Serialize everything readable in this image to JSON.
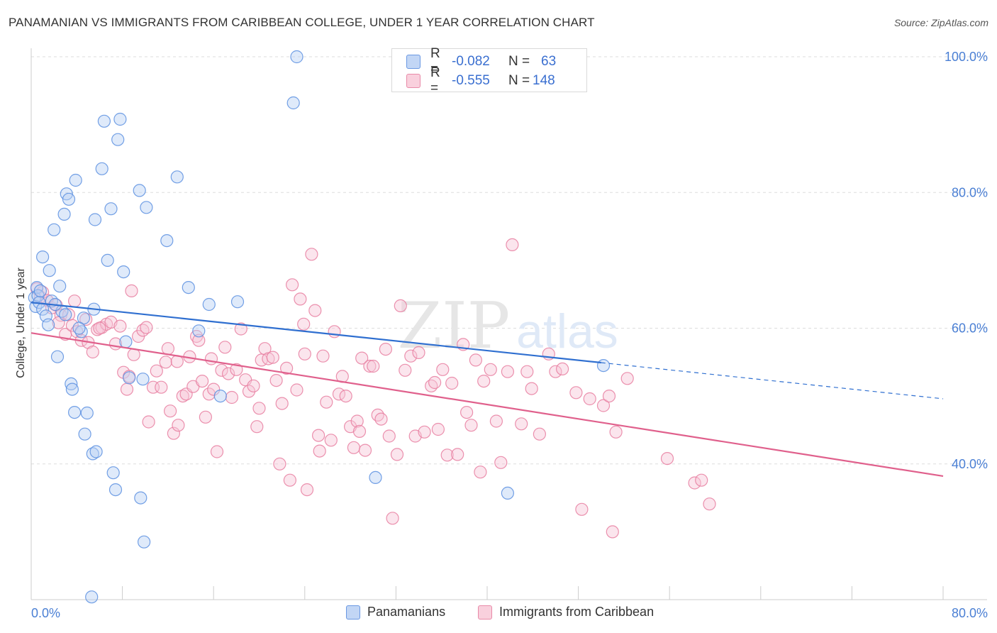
{
  "title": "PANAMANIAN VS IMMIGRANTS FROM CARIBBEAN COLLEGE, UNDER 1 YEAR CORRELATION CHART",
  "source": "Source: ZipAtlas.com",
  "watermark": {
    "zip": "ZIP",
    "atlas": "atlas"
  },
  "colors": {
    "blue": "#5b8fe0",
    "blue_fill": "#b9d0f5",
    "blue_line": "#2f6fd0",
    "pink": "#e87ea0",
    "pink_fill": "#f7c6d6",
    "pink_line": "#e0608c",
    "tick_text": "#4a7fd4",
    "grid": "#dddddd"
  },
  "legend": {
    "rows": [
      {
        "r_label": "R =",
        "r_value": "-0.082",
        "n_label": "N =",
        "n_value": "63"
      },
      {
        "r_label": "R =",
        "r_value": "-0.555",
        "n_label": "N =",
        "n_value": "148"
      }
    ]
  },
  "bottom_legend": [
    "Panamanians",
    "Immigrants from Caribbean"
  ],
  "chart_data": {
    "type": "scatter",
    "ylabel": "College, Under 1 year",
    "xlim": [
      0,
      80
    ],
    "ylim": [
      20,
      100
    ],
    "x_tick_labels": [
      "0.0%",
      "80.0%"
    ],
    "y_ticks": [
      40,
      60,
      80,
      100
    ],
    "y_tick_labels": [
      "40.0%",
      "60.0%",
      "80.0%",
      "100.0%"
    ],
    "grid": true,
    "series": [
      {
        "name": "Panamanians",
        "color": "#5b8fe0",
        "points": [
          [
            0.3,
            64.5
          ],
          [
            0.4,
            63.2
          ],
          [
            0.5,
            66.0
          ],
          [
            0.6,
            64.8
          ],
          [
            0.7,
            63.8
          ],
          [
            0.8,
            65.5
          ],
          [
            1.0,
            62.8
          ],
          [
            1.0,
            70.5
          ],
          [
            1.3,
            61.8
          ],
          [
            1.5,
            60.5
          ],
          [
            1.6,
            68.5
          ],
          [
            2.0,
            74.5
          ],
          [
            2.3,
            55.8
          ],
          [
            2.5,
            66.2
          ],
          [
            2.7,
            62.5
          ],
          [
            2.9,
            76.8
          ],
          [
            3.1,
            79.8
          ],
          [
            3.3,
            79.0
          ],
          [
            3.5,
            51.8
          ],
          [
            3.6,
            51.0
          ],
          [
            3.8,
            47.6
          ],
          [
            3.9,
            81.8
          ],
          [
            4.4,
            59.5
          ],
          [
            4.6,
            61.5
          ],
          [
            4.7,
            44.4
          ],
          [
            4.9,
            47.5
          ],
          [
            5.4,
            41.5
          ],
          [
            5.5,
            62.8
          ],
          [
            5.6,
            76.0
          ],
          [
            5.7,
            41.8
          ],
          [
            6.2,
            83.5
          ],
          [
            6.4,
            90.5
          ],
          [
            6.7,
            70.0
          ],
          [
            7.0,
            77.6
          ],
          [
            7.2,
            38.7
          ],
          [
            7.4,
            36.2
          ],
          [
            7.6,
            87.8
          ],
          [
            7.8,
            90.8
          ],
          [
            8.1,
            68.3
          ],
          [
            8.3,
            58.0
          ],
          [
            8.6,
            52.7
          ],
          [
            9.5,
            80.3
          ],
          [
            9.6,
            35.0
          ],
          [
            9.8,
            52.5
          ],
          [
            9.9,
            28.5
          ],
          [
            10.1,
            77.8
          ],
          [
            11.9,
            72.9
          ],
          [
            12.8,
            82.3
          ],
          [
            13.8,
            66.0
          ],
          [
            14.7,
            59.6
          ],
          [
            15.6,
            63.5
          ],
          [
            16.6,
            50.0
          ],
          [
            18.1,
            63.9
          ],
          [
            23.0,
            93.2
          ],
          [
            23.3,
            100.0
          ],
          [
            30.2,
            38.0
          ],
          [
            41.8,
            35.7
          ],
          [
            50.2,
            54.5
          ],
          [
            5.3,
            20.4
          ],
          [
            1.8,
            64.0
          ],
          [
            2.1,
            63.5
          ],
          [
            3.0,
            62.0
          ],
          [
            4.2,
            60.0
          ]
        ]
      },
      {
        "name": "Immigrants from Caribbean",
        "color": "#e87ea0",
        "points": [
          [
            0.5,
            65.8
          ],
          [
            0.8,
            64.6
          ],
          [
            1.0,
            65.3
          ],
          [
            1.4,
            64.1
          ],
          [
            1.8,
            63.0
          ],
          [
            2.2,
            63.4
          ],
          [
            2.6,
            61.9
          ],
          [
            3.0,
            59.1
          ],
          [
            3.3,
            62.0
          ],
          [
            3.6,
            60.4
          ],
          [
            4.0,
            59.5
          ],
          [
            4.4,
            58.2
          ],
          [
            4.8,
            61.3
          ],
          [
            5.0,
            57.9
          ],
          [
            5.4,
            56.5
          ],
          [
            5.8,
            59.8
          ],
          [
            6.2,
            60.1
          ],
          [
            6.6,
            60.6
          ],
          [
            7.0,
            60.9
          ],
          [
            7.4,
            57.7
          ],
          [
            7.8,
            60.3
          ],
          [
            8.1,
            53.5
          ],
          [
            8.4,
            51.0
          ],
          [
            8.8,
            65.5
          ],
          [
            9.0,
            56.1
          ],
          [
            9.4,
            58.8
          ],
          [
            9.8,
            59.7
          ],
          [
            10.1,
            60.1
          ],
          [
            10.3,
            46.2
          ],
          [
            10.7,
            51.3
          ],
          [
            11.0,
            53.7
          ],
          [
            11.4,
            51.3
          ],
          [
            11.8,
            55.0
          ],
          [
            12.0,
            57.0
          ],
          [
            12.2,
            47.8
          ],
          [
            12.5,
            44.5
          ],
          [
            12.9,
            45.7
          ],
          [
            13.3,
            50.0
          ],
          [
            13.6,
            50.3
          ],
          [
            13.9,
            55.8
          ],
          [
            14.2,
            51.4
          ],
          [
            14.5,
            58.8
          ],
          [
            14.7,
            58.2
          ],
          [
            15.0,
            52.2
          ],
          [
            15.3,
            46.9
          ],
          [
            15.6,
            50.3
          ],
          [
            16.0,
            51.0
          ],
          [
            16.3,
            41.8
          ],
          [
            16.7,
            53.8
          ],
          [
            17.0,
            57.2
          ],
          [
            17.3,
            53.3
          ],
          [
            17.6,
            49.8
          ],
          [
            18.0,
            53.9
          ],
          [
            18.4,
            59.9
          ],
          [
            18.8,
            52.4
          ],
          [
            19.1,
            50.7
          ],
          [
            19.5,
            51.5
          ],
          [
            19.8,
            45.5
          ],
          [
            20.2,
            55.3
          ],
          [
            20.5,
            57.0
          ],
          [
            20.8,
            55.5
          ],
          [
            21.2,
            55.7
          ],
          [
            21.5,
            52.3
          ],
          [
            21.8,
            40.0
          ],
          [
            22.0,
            48.9
          ],
          [
            22.4,
            54.1
          ],
          [
            22.7,
            37.6
          ],
          [
            22.9,
            66.4
          ],
          [
            23.3,
            50.9
          ],
          [
            23.6,
            64.3
          ],
          [
            23.9,
            60.6
          ],
          [
            24.2,
            36.2
          ],
          [
            24.6,
            70.9
          ],
          [
            24.9,
            62.6
          ],
          [
            25.2,
            44.2
          ],
          [
            25.3,
            41.9
          ],
          [
            25.6,
            55.9
          ],
          [
            25.9,
            49.1
          ],
          [
            26.3,
            43.5
          ],
          [
            26.6,
            59.5
          ],
          [
            27.0,
            50.3
          ],
          [
            27.3,
            52.9
          ],
          [
            27.6,
            50.0
          ],
          [
            28.0,
            45.5
          ],
          [
            28.3,
            42.4
          ],
          [
            28.6,
            46.3
          ],
          [
            29.0,
            55.6
          ],
          [
            29.3,
            42.0
          ],
          [
            29.7,
            54.4
          ],
          [
            30.0,
            54.4
          ],
          [
            30.4,
            47.2
          ],
          [
            30.7,
            46.6
          ],
          [
            31.1,
            56.9
          ],
          [
            31.4,
            44.1
          ],
          [
            31.7,
            32.0
          ],
          [
            32.1,
            41.4
          ],
          [
            32.4,
            63.3
          ],
          [
            32.8,
            53.8
          ],
          [
            33.3,
            55.9
          ],
          [
            33.7,
            44.1
          ],
          [
            34.0,
            56.4
          ],
          [
            34.5,
            44.7
          ],
          [
            35.1,
            51.5
          ],
          [
            35.4,
            52.0
          ],
          [
            35.7,
            45.1
          ],
          [
            36.1,
            53.9
          ],
          [
            36.5,
            41.3
          ],
          [
            36.9,
            51.9
          ],
          [
            37.4,
            41.4
          ],
          [
            37.9,
            57.6
          ],
          [
            38.2,
            47.6
          ],
          [
            38.6,
            45.7
          ],
          [
            39.0,
            55.3
          ],
          [
            39.4,
            38.8
          ],
          [
            39.7,
            52.2
          ],
          [
            40.3,
            53.9
          ],
          [
            40.8,
            46.3
          ],
          [
            41.2,
            40.2
          ],
          [
            41.8,
            53.6
          ],
          [
            42.2,
            72.3
          ],
          [
            43.0,
            45.9
          ],
          [
            43.5,
            53.6
          ],
          [
            43.9,
            51.1
          ],
          [
            44.6,
            44.4
          ],
          [
            45.4,
            56.2
          ],
          [
            46.0,
            53.6
          ],
          [
            46.6,
            54.0
          ],
          [
            47.8,
            50.5
          ],
          [
            48.3,
            33.3
          ],
          [
            49.0,
            49.6
          ],
          [
            50.2,
            48.6
          ],
          [
            50.7,
            50.0
          ],
          [
            51.0,
            30.0
          ],
          [
            51.3,
            44.7
          ],
          [
            52.3,
            52.6
          ],
          [
            55.8,
            40.8
          ],
          [
            58.2,
            37.2
          ],
          [
            58.8,
            37.6
          ],
          [
            59.5,
            34.1
          ],
          [
            6.0,
            60.0
          ],
          [
            2.4,
            60.8
          ],
          [
            3.8,
            64.0
          ],
          [
            8.6,
            52.9
          ],
          [
            12.8,
            55.1
          ],
          [
            15.8,
            55.5
          ],
          [
            20.0,
            48.2
          ],
          [
            24.0,
            56.2
          ],
          [
            28.8,
            44.8
          ]
        ]
      }
    ],
    "trend_lines": [
      {
        "series": "Panamanians",
        "x_solid": [
          0,
          50
        ],
        "x_dashed": [
          50,
          80
        ],
        "y_at_0": 63.8,
        "y_at_80": 49.6
      },
      {
        "series": "Immigrants from Caribbean",
        "x": [
          0,
          80
        ],
        "y_at_0": 59.3,
        "y_at_80": 38.2
      }
    ]
  }
}
